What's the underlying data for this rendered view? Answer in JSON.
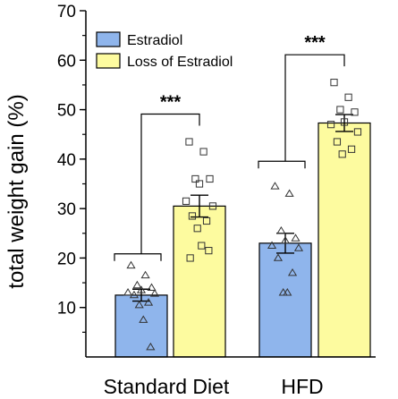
{
  "chart_data": {
    "type": "bar",
    "title": "",
    "xlabel": "",
    "ylabel": "total weight gain (%)",
    "ylim": [
      0,
      70
    ],
    "yticks": [
      10,
      20,
      30,
      40,
      50,
      60,
      70
    ],
    "categories": [
      "Standard Diet",
      "HFD"
    ],
    "legend_position": "top-left",
    "grid": false,
    "series": [
      {
        "name": "Estradiol",
        "color": "#8fb5ec",
        "marker": "triangle",
        "values": [
          12.5,
          23.0
        ],
        "error": [
          1.2,
          2.0
        ],
        "points": [
          [
            18.5,
            16.5,
            14.5,
            14.0,
            13.5,
            13.0,
            12.8,
            12.5,
            11.0,
            10.5,
            7.5,
            2.0
          ],
          [
            34.5,
            33.0,
            25.5,
            24.0,
            23.5,
            22.5,
            22.0,
            20.0,
            17.0,
            13.0,
            13.0
          ]
        ]
      },
      {
        "name": "Loss of Estradiol",
        "color": "#fdfb9f",
        "marker": "square",
        "values": [
          30.5,
          47.3
        ],
        "error": [
          2.2,
          1.7
        ],
        "points": [
          [
            43.5,
            41.5,
            36.0,
            36.0,
            35.0,
            31.5,
            30.5,
            28.5,
            27.5,
            26.0,
            22.5,
            21.5,
            20.0
          ],
          [
            55.5,
            52.5,
            50.0,
            49.5,
            47.5,
            47.0,
            45.5,
            43.5,
            42.0,
            41.0
          ]
        ]
      }
    ],
    "annotations": [
      {
        "category": "Standard Diet",
        "label": "***"
      },
      {
        "category": "HFD",
        "label": "***"
      }
    ]
  }
}
